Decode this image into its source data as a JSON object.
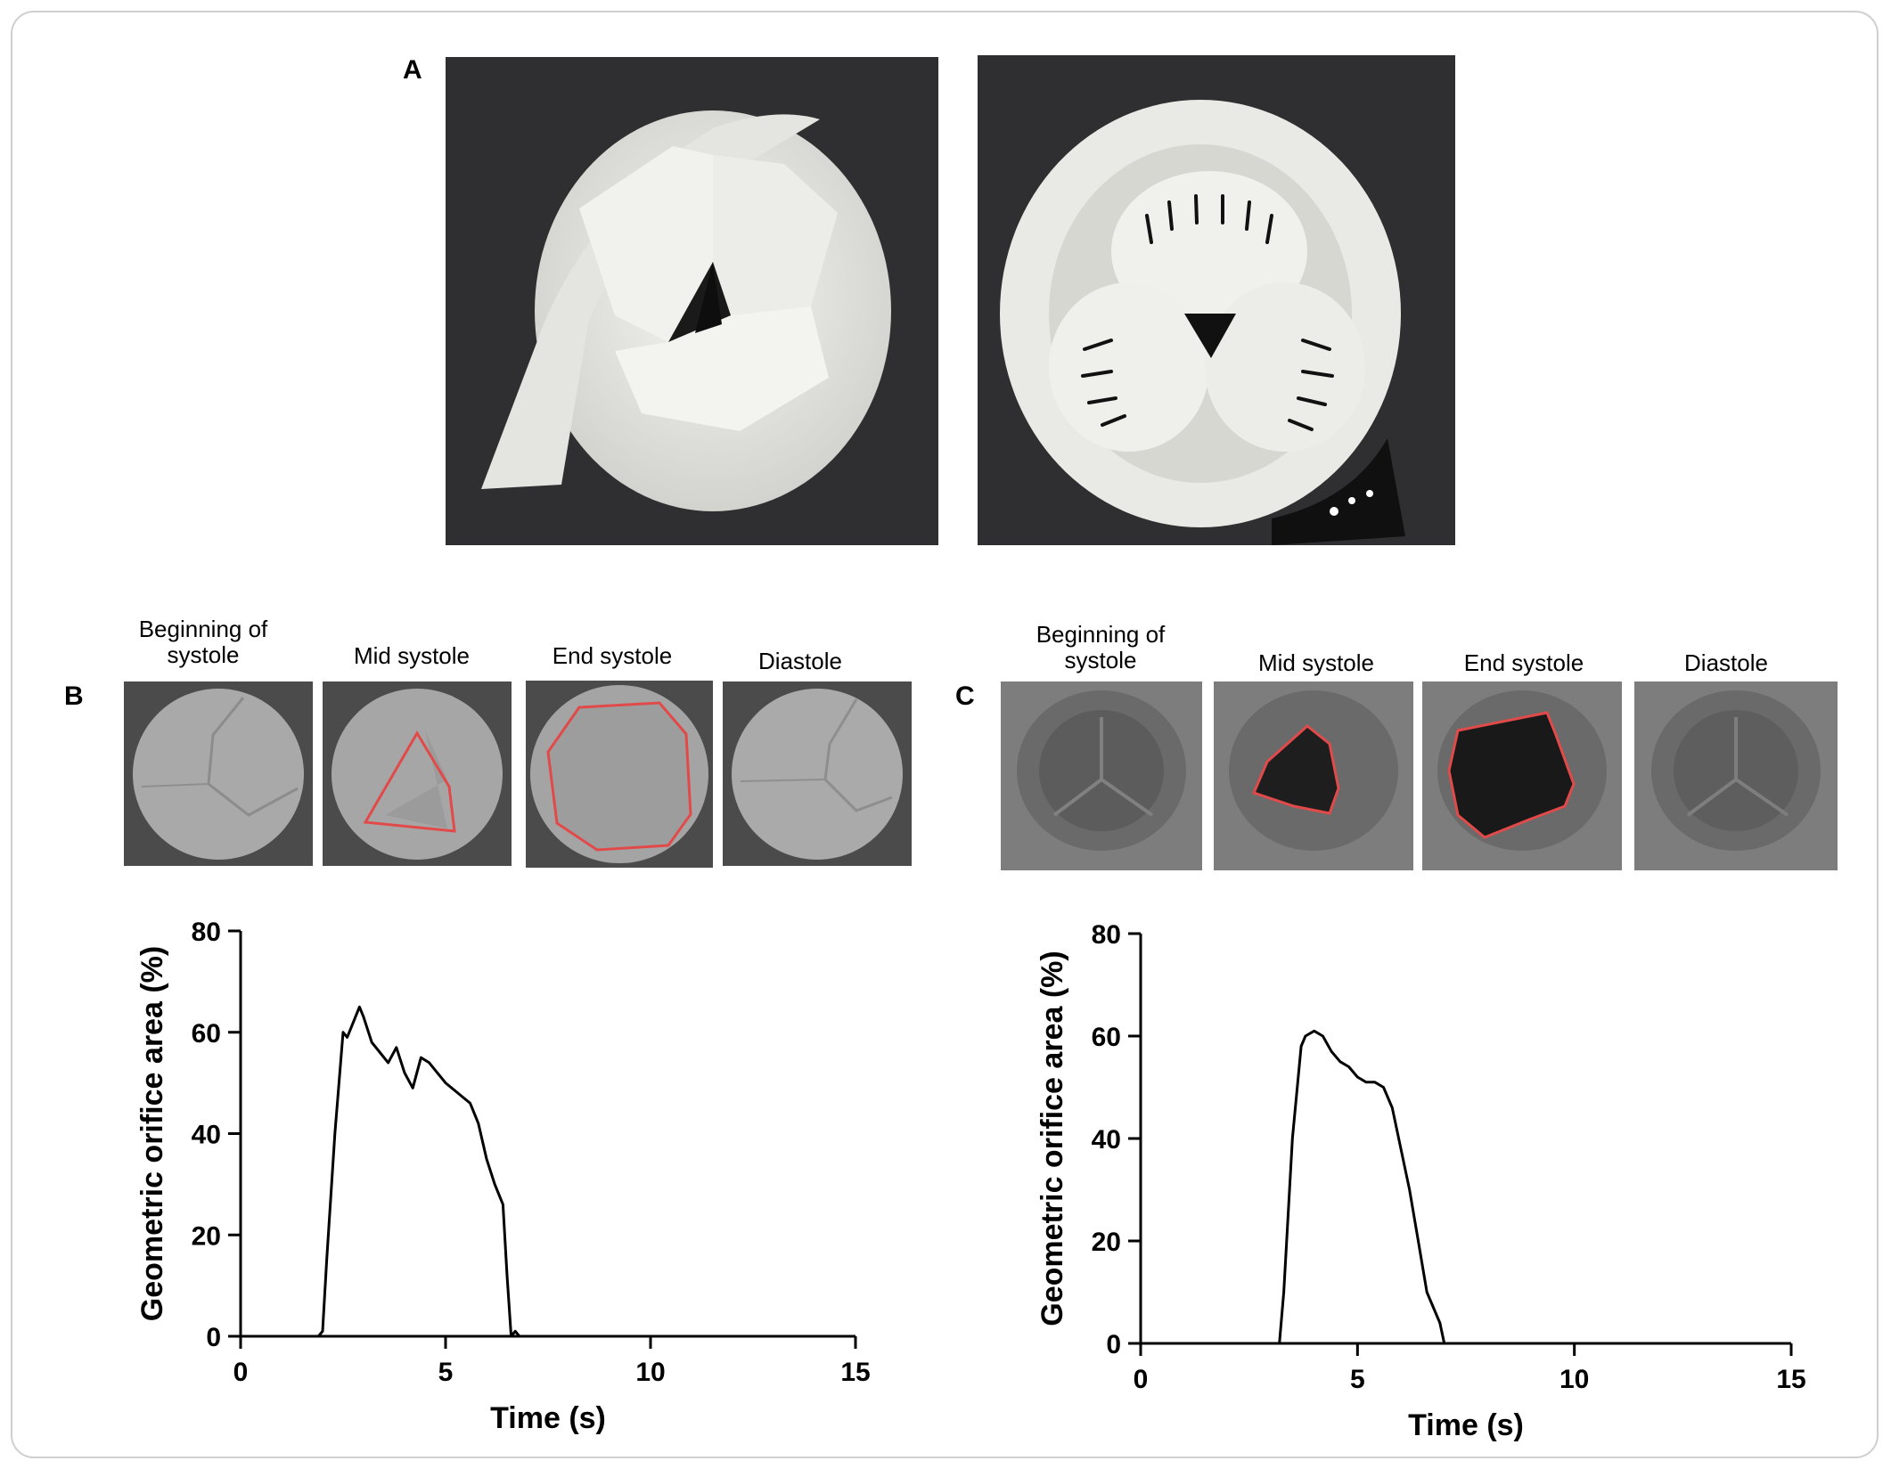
{
  "panels": {
    "a": {
      "letter": "A"
    },
    "b": {
      "letter": "B",
      "frame_labels": [
        "Beginning of\nsystole",
        "Mid  systole",
        "End systole",
        "Diastole"
      ]
    },
    "c": {
      "letter": "C",
      "frame_labels": [
        "Beginning of\nsystole",
        "Mid  systole",
        "End systole",
        "Diastole"
      ]
    }
  },
  "colors": {
    "trace": "#000000",
    "outline_red": "#e24a4a",
    "photo_bg": "#2d2d2f",
    "valve_white": "#eeeeea"
  },
  "chart_data": [
    {
      "type": "line",
      "panel": "B",
      "xlabel": "Time (s)",
      "ylabel": "Geometric orifice area (%)",
      "xlim": [
        0,
        15
      ],
      "ylim": [
        0,
        80
      ],
      "xticks": [
        0,
        5,
        10,
        15
      ],
      "yticks": [
        0,
        20,
        40,
        60,
        80
      ],
      "series": [
        {
          "x": [
            0,
            1.9,
            2.0,
            2.1,
            2.3,
            2.5,
            2.6,
            2.75,
            2.9,
            3.0,
            3.2,
            3.4,
            3.6,
            3.8,
            4.0,
            4.2,
            4.4,
            4.6,
            4.8,
            5.0,
            5.3,
            5.6,
            5.8,
            6.0,
            6.2,
            6.4,
            6.5,
            6.6,
            6.7,
            6.8,
            15
          ],
          "y": [
            0,
            0,
            1,
            15,
            40,
            60,
            59,
            62,
            65,
            63,
            58,
            56,
            54,
            57,
            52,
            49,
            55,
            54,
            52,
            50,
            48,
            46,
            42,
            35,
            30,
            26,
            12,
            0,
            1,
            0,
            0
          ]
        }
      ]
    },
    {
      "type": "line",
      "panel": "C",
      "xlabel": "Time (s)",
      "ylabel": "Geometric orifice area (%)",
      "xlim": [
        0,
        15
      ],
      "ylim": [
        0,
        80
      ],
      "xticks": [
        0,
        5,
        10,
        15
      ],
      "yticks": [
        0,
        20,
        40,
        60,
        80
      ],
      "series": [
        {
          "x": [
            0,
            3.2,
            3.3,
            3.5,
            3.7,
            3.8,
            4.0,
            4.2,
            4.4,
            4.6,
            4.8,
            5.0,
            5.2,
            5.4,
            5.6,
            5.8,
            6.0,
            6.2,
            6.4,
            6.6,
            6.8,
            6.9,
            7.0,
            15
          ],
          "y": [
            0,
            0,
            10,
            40,
            58,
            60,
            61,
            60,
            57,
            55,
            54,
            52,
            51,
            51,
            50,
            46,
            38,
            30,
            20,
            10,
            6,
            4,
            0,
            0
          ]
        }
      ]
    }
  ]
}
